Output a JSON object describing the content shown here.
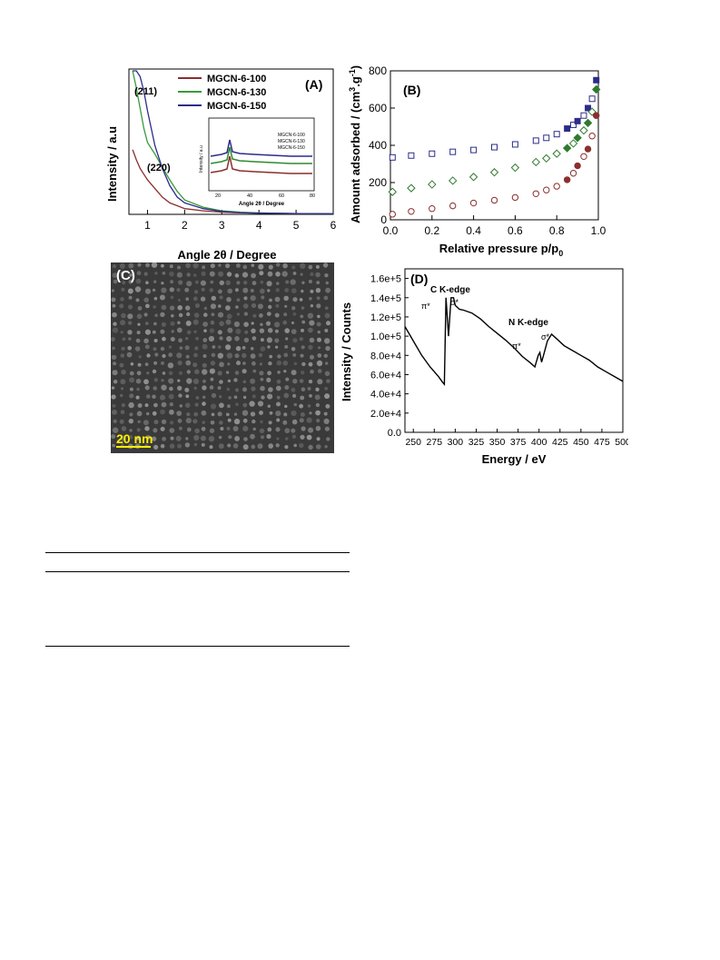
{
  "panels": {
    "A": {
      "chart_data": {
        "type": "line",
        "panel_label": "(A)",
        "xlabel": "Angle 2θ / Degree",
        "ylabel": "Intensity / a.u",
        "xlim": [
          0.5,
          6
        ],
        "xticks": [
          1,
          2,
          3,
          4,
          5,
          6
        ],
        "x": [
          0.6,
          0.7,
          0.8,
          0.9,
          1.0,
          1.2,
          1.4,
          1.6,
          1.8,
          2.0,
          2.5,
          3.0,
          3.5,
          4.0,
          5.0,
          6.0
        ],
        "series": [
          {
            "name": "MGCN-6-100",
            "color": "#8b2e2e",
            "values": [
              0.45,
              0.38,
              0.32,
              0.28,
              0.24,
              0.18,
              0.12,
              0.08,
              0.06,
              0.04,
              0.025,
              0.015,
              0.01,
              0.008,
              0.005,
              0.004
            ]
          },
          {
            "name": "MGCN-6-130",
            "color": "#3a9a3a",
            "values": [
              1.0,
              0.88,
              0.74,
              0.6,
              0.5,
              0.42,
              0.33,
              0.24,
              0.16,
              0.1,
              0.05,
              0.025,
              0.015,
              0.01,
              0.006,
              0.004
            ]
          },
          {
            "name": "MGCN-6-150",
            "color": "#2c2c8a",
            "values": [
              1.0,
              1.0,
              0.96,
              0.86,
              0.72,
              0.48,
              0.32,
              0.2,
              0.12,
              0.08,
              0.04,
              0.02,
              0.012,
              0.008,
              0.005,
              0.004
            ]
          }
        ],
        "annotations": [
          "(211)",
          "(220)"
        ],
        "inset": {
          "xlabel": "Angle 2θ / Degree",
          "ylabel": "Intensity / a.u",
          "xticks": [
            20,
            40,
            60,
            80
          ],
          "legend": [
            "MGCN-6-100",
            "MGCN-6-130",
            "MGCN-6-150"
          ]
        }
      }
    },
    "B": {
      "chart_data": {
        "type": "scatter",
        "panel_label": "(B)",
        "xlabel": "Relative pressure p/p0",
        "ylabel": "Amount adsorbed / (cm3.g-1)",
        "xlim": [
          0.0,
          1.0
        ],
        "ylim": [
          0,
          800
        ],
        "xticks": [
          0.0,
          0.2,
          0.4,
          0.6,
          0.8,
          1.0
        ],
        "yticks": [
          0,
          200,
          400,
          600,
          800
        ],
        "series": [
          {
            "marker": "square",
            "color": "#2c2c8a",
            "x": [
              0.01,
              0.1,
              0.2,
              0.3,
              0.4,
              0.5,
              0.6,
              0.7,
              0.75,
              0.8,
              0.85,
              0.88,
              0.9,
              0.93,
              0.95,
              0.97,
              0.99
            ],
            "values": [
              335,
              345,
              355,
              365,
              375,
              390,
              405,
              425,
              440,
              460,
              490,
              510,
              530,
              560,
              600,
              650,
              750
            ]
          },
          {
            "marker": "diamond",
            "color": "#2f7a2f",
            "x": [
              0.01,
              0.1,
              0.2,
              0.3,
              0.4,
              0.5,
              0.6,
              0.7,
              0.75,
              0.8,
              0.85,
              0.88,
              0.9,
              0.93,
              0.95,
              0.97,
              0.99
            ],
            "values": [
              150,
              170,
              190,
              210,
              230,
              255,
              280,
              310,
              330,
              355,
              385,
              410,
              440,
              480,
              520,
              580,
              700
            ]
          },
          {
            "marker": "circle",
            "color": "#8b2e2e",
            "x": [
              0.01,
              0.1,
              0.2,
              0.3,
              0.4,
              0.5,
              0.6,
              0.7,
              0.75,
              0.8,
              0.85,
              0.88,
              0.9,
              0.93,
              0.95,
              0.97,
              0.99
            ],
            "values": [
              30,
              45,
              60,
              75,
              90,
              105,
              120,
              140,
              160,
              180,
              215,
              250,
              290,
              340,
              380,
              450,
              560
            ]
          }
        ]
      }
    },
    "C": {
      "panel_label": "(C)",
      "scale_label": "20 nm"
    },
    "D": {
      "chart_data": {
        "type": "line",
        "panel_label": "(D)",
        "xlabel": "Energy / eV",
        "ylabel": "Intensity / Counts",
        "xlim": [
          240,
          500
        ],
        "ylim": [
          0,
          170000
        ],
        "xticks": [
          250,
          275,
          300,
          325,
          350,
          375,
          400,
          425,
          450,
          475,
          500
        ],
        "yticks": [
          "0.0",
          "2.0e+4",
          "4.0e+4",
          "6.0e+4",
          "8.0e+4",
          "1.0e+5",
          "1.2e+5",
          "1.4e+5",
          "1.6e+5"
        ],
        "x": [
          240,
          250,
          260,
          270,
          280,
          285,
          287,
          289,
          292,
          295,
          298,
          300,
          305,
          310,
          320,
          330,
          340,
          350,
          360,
          370,
          380,
          390,
          395,
          399,
          401,
          403,
          405,
          410,
          415,
          420,
          430,
          440,
          450,
          460,
          470,
          480,
          490,
          500
        ],
        "values": [
          110000,
          95000,
          80000,
          68000,
          58000,
          52000,
          50000,
          140000,
          100000,
          140000,
          140000,
          132000,
          128000,
          127000,
          124000,
          118000,
          110000,
          103000,
          96000,
          88000,
          79000,
          72000,
          68000,
          80000,
          83000,
          73000,
          79000,
          95000,
          102000,
          98000,
          90000,
          85000,
          80000,
          75000,
          68000,
          63000,
          58000,
          53000
        ],
        "annotations": [
          "C K-edge",
          "π*",
          "σ*",
          "N K-edge",
          "π*",
          "σ*"
        ]
      }
    }
  }
}
